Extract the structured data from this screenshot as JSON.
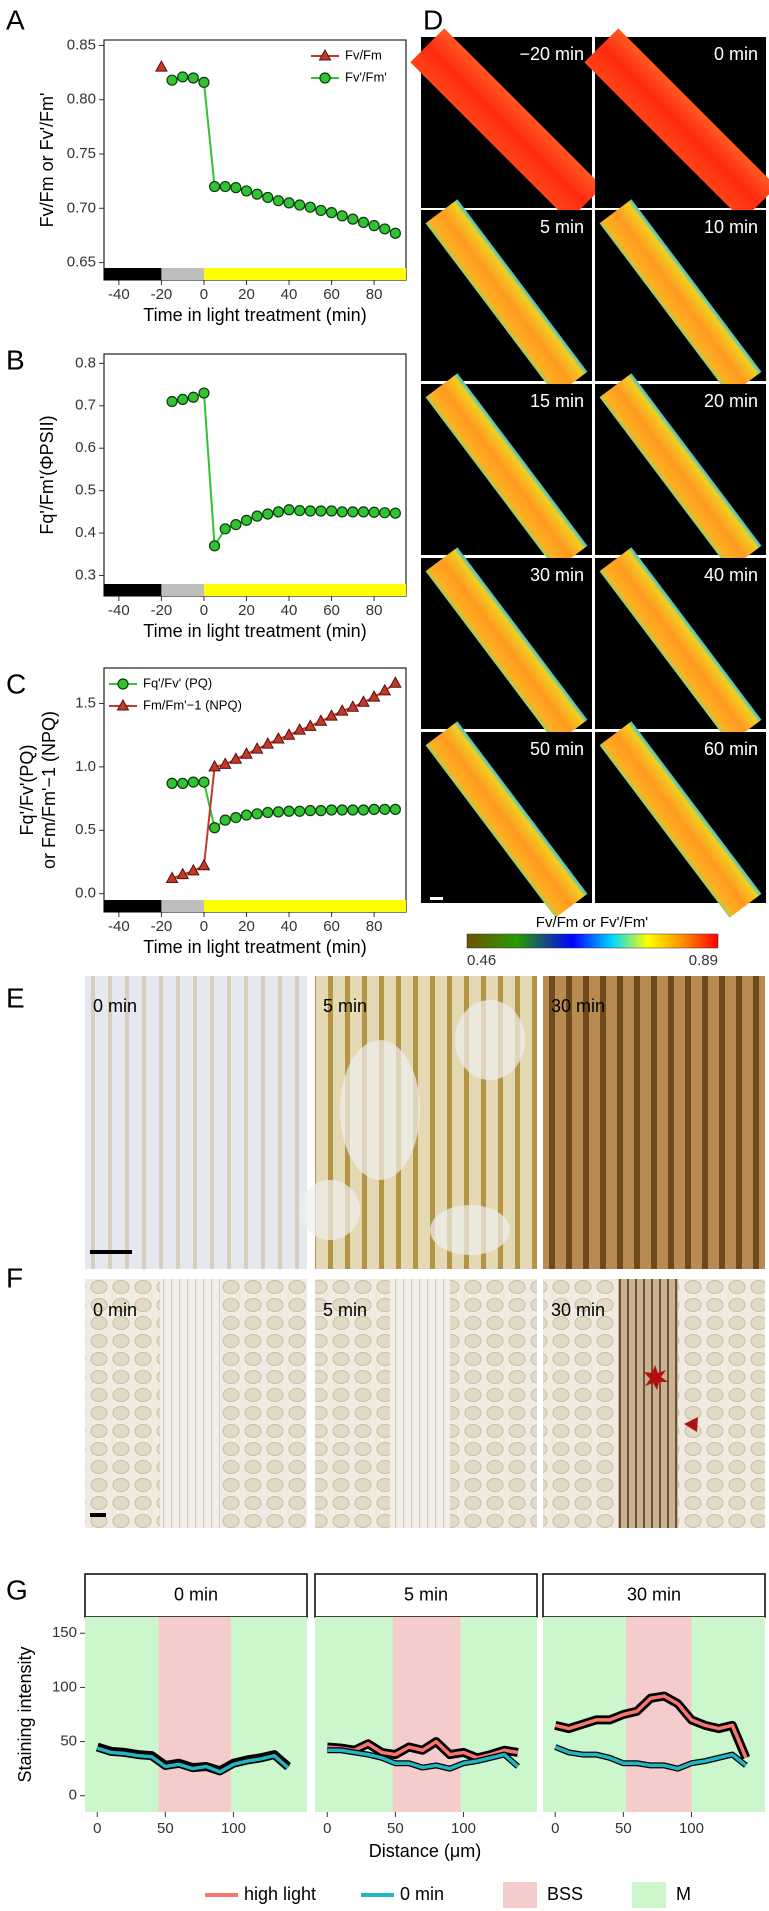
{
  "chart_data": [
    {
      "type": "line",
      "label": "A",
      "ylabel": "Fv/Fm or Fv'/Fm'",
      "xlabel": "Time in light treatment (min)",
      "x": [
        -20,
        -15,
        -10,
        -5,
        0,
        5,
        10,
        15,
        20,
        25,
        30,
        35,
        40,
        45,
        50,
        55,
        60,
        65,
        70,
        75,
        80,
        85,
        90
      ],
      "xlim": [
        -47,
        95
      ],
      "ylim": [
        0.645,
        0.855
      ],
      "xticks": [
        -40,
        -20,
        0,
        20,
        40,
        60,
        80
      ],
      "yticks": [
        0.65,
        {
          "value": 0.7,
          "label": "0.70"
        },
        0.75,
        {
          "value": 0.8,
          "label": "0.80"
        },
        0.85
      ],
      "legend": "top-right",
      "phases": [
        {
          "color": "#000000",
          "from": -47,
          "to": -20
        },
        {
          "color": "#bdbdbd",
          "from": -20,
          "to": 0
        },
        {
          "color": "#ffff00",
          "from": 0,
          "to": 95
        }
      ],
      "series": [
        {
          "name": "Fv/Fm",
          "color": "#c0392b",
          "marker": "triangle",
          "values": [
            0.83,
            null,
            null,
            null,
            null,
            null,
            null,
            null,
            null,
            null,
            null,
            null,
            null,
            null,
            null,
            null,
            null,
            null,
            null,
            null,
            null,
            null,
            null
          ]
        },
        {
          "name": "Fv'/Fm'",
          "color": "#33c233",
          "marker": "circle",
          "values": [
            null,
            0.818,
            0.821,
            0.82,
            0.816,
            0.72,
            0.72,
            0.719,
            0.716,
            0.713,
            0.71,
            0.707,
            0.705,
            0.703,
            0.701,
            0.698,
            0.696,
            0.693,
            0.69,
            0.687,
            0.684,
            0.681,
            0.677
          ]
        }
      ]
    },
    {
      "type": "line",
      "label": "B",
      "ylabel": "Fq'/Fm'(ΦPSII)",
      "xlabel": "Time in light treatment (min)",
      "x": [
        -20,
        -15,
        -10,
        -5,
        0,
        5,
        10,
        15,
        20,
        25,
        30,
        35,
        40,
        45,
        50,
        55,
        60,
        65,
        70,
        75,
        80,
        85,
        90
      ],
      "xlim": [
        -47,
        95
      ],
      "ylim": [
        0.28,
        0.822
      ],
      "xticks": [
        -40,
        -20,
        0,
        20,
        40,
        60,
        80
      ],
      "yticks": [
        0.3,
        0.4,
        0.5,
        0.6,
        0.7,
        0.8
      ],
      "phases": [
        {
          "color": "#000000",
          "from": -47,
          "to": -20
        },
        {
          "color": "#bdbdbd",
          "from": -20,
          "to": 0
        },
        {
          "color": "#ffff00",
          "from": 0,
          "to": 95
        }
      ],
      "series": [
        {
          "name": "ΦPSII",
          "color": "#33c233",
          "marker": "circle",
          "values": [
            null,
            0.71,
            0.715,
            0.72,
            0.73,
            0.37,
            0.41,
            0.42,
            0.43,
            0.44,
            0.445,
            0.45,
            0.455,
            0.453,
            0.452,
            0.452,
            0.452,
            0.45,
            0.45,
            0.45,
            0.449,
            0.448,
            0.447
          ]
        }
      ]
    },
    {
      "type": "line",
      "label": "C",
      "ylabel": [
        "Fq'/Fv'(PQ)",
        "or Fm/Fm'−1 (NPQ)"
      ],
      "xlabel": "Time in light treatment (min)",
      "x": [
        -20,
        -15,
        -10,
        -5,
        0,
        5,
        10,
        15,
        20,
        25,
        30,
        35,
        40,
        45,
        50,
        55,
        60,
        65,
        70,
        75,
        80,
        85,
        90
      ],
      "xlim": [
        -47,
        95
      ],
      "ylim": [
        -0.05,
        1.78
      ],
      "xticks": [
        -40,
        -20,
        0,
        20,
        40,
        60,
        80
      ],
      "yticks": [
        {
          "value": 0,
          "label": "0.0"
        },
        0.5,
        {
          "value": 1,
          "label": "1.0"
        },
        1.5
      ],
      "legend": "top-left",
      "phases": [
        {
          "color": "#000000",
          "from": -47,
          "to": -20
        },
        {
          "color": "#bdbdbd",
          "from": -20,
          "to": 0
        },
        {
          "color": "#ffff00",
          "from": 0,
          "to": 95
        }
      ],
      "series": [
        {
          "name": "Fq'/Fv' (PQ)",
          "color": "#33c233",
          "marker": "circle",
          "values": [
            null,
            0.87,
            0.87,
            0.88,
            0.88,
            0.52,
            0.58,
            0.6,
            0.62,
            0.63,
            0.64,
            0.645,
            0.65,
            0.65,
            0.655,
            0.655,
            0.66,
            0.66,
            0.66,
            0.66,
            0.665,
            0.665,
            0.665
          ]
        },
        {
          "name": "Fm/Fm'−1 (NPQ)",
          "color": "#c0392b",
          "marker": "triangle",
          "values": [
            null,
            0.12,
            0.15,
            0.18,
            0.22,
            1.0,
            1.02,
            1.06,
            1.1,
            1.14,
            1.18,
            1.22,
            1.25,
            1.29,
            1.32,
            1.36,
            1.4,
            1.44,
            1.47,
            1.51,
            1.55,
            1.6,
            1.66
          ]
        }
      ]
    },
    {
      "type": "image-grid",
      "label": "D",
      "tiles": [
        "−20 min",
        "0 min",
        "5 min",
        "10 min",
        "15 min",
        "20 min",
        "30 min",
        "40 min",
        "50 min",
        "60 min"
      ],
      "colorbar": {
        "title": "Fv/Fm or Fv'/Fm'",
        "range": [
          0.46,
          0.89
        ]
      }
    },
    {
      "type": "image-row",
      "label": "E",
      "tiles": [
        "0 min",
        "5 min",
        "30 min"
      ]
    },
    {
      "type": "image-row",
      "label": "F",
      "tiles": [
        "0 min",
        "5 min",
        "30 min"
      ]
    },
    {
      "type": "line",
      "label": "G",
      "ylabel": "Staining intensity",
      "xlabel": "Distance (μm)",
      "x": [
        0,
        10,
        20,
        30,
        40,
        50,
        60,
        70,
        80,
        90,
        100,
        110,
        120,
        130,
        140
      ],
      "xlim": [
        -9,
        154
      ],
      "ylim": [
        -15,
        165
      ],
      "xticks": [
        0,
        50,
        100
      ],
      "yticks": [
        0,
        50,
        100,
        150
      ],
      "series": [
        {
          "name": "high light",
          "color": "#f8766d"
        },
        {
          "name": "0 min",
          "color": "#22b5c4"
        }
      ],
      "regions": [
        {
          "name": "BSS",
          "color": "#f4cccc"
        },
        {
          "name": "M",
          "color": "#ccf7cc"
        }
      ],
      "facets": [
        {
          "title": "0 min",
          "bss": [
            45,
            98
          ],
          "values": [
            [
              45,
              41,
              40,
              38,
              37,
              28,
              30,
              26,
              27,
              23,
              30,
              33,
              35,
              38,
              27
            ],
            [
              44,
              40,
              39,
              37,
              36,
              27,
              29,
              25,
              27,
              22,
              29,
              32,
              34,
              37,
              26
            ]
          ]
        },
        {
          "title": "5 min",
          "bss": [
            48,
            98
          ],
          "values": [
            [
              45,
              44,
              42,
              48,
              40,
              38,
              45,
              42,
              50,
              38,
              40,
              35,
              38,
              42,
              40
            ],
            [
              42,
              42,
              40,
              38,
              35,
              30,
              30,
              26,
              28,
              25,
              30,
              32,
              35,
              38,
              27
            ]
          ]
        },
        {
          "title": "30 min",
          "bss": [
            52,
            100
          ],
          "values": [
            [
              65,
              62,
              66,
              70,
              70,
              75,
              78,
              90,
              92,
              85,
              70,
              65,
              62,
              65,
              35
            ],
            [
              45,
              40,
              38,
              38,
              35,
              30,
              30,
              28,
              28,
              25,
              30,
              32,
              35,
              38,
              28
            ]
          ]
        }
      ]
    }
  ]
}
